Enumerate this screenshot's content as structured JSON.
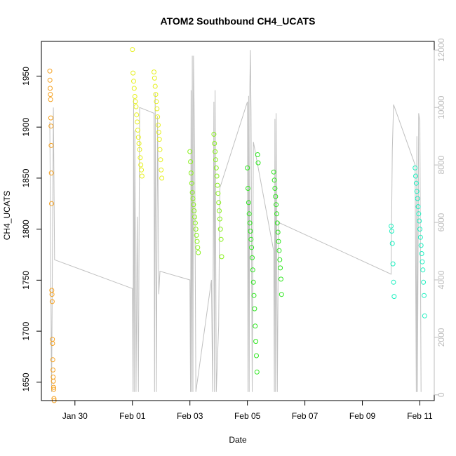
{
  "chart_data": {
    "type": "scatter",
    "title": "ATOM2 Southbound CH4_UCATS",
    "xlabel": "Date",
    "ylabel": "CH4_UCATS",
    "xlim": [
      "2017-01-28T20:00",
      "2017-02-11T12:00"
    ],
    "ylim": [
      1632,
      1984
    ],
    "y2lim": [
      -200,
      12300
    ],
    "x_ticks": [
      {
        "x": "2017-01-30",
        "label": "Jan 30"
      },
      {
        "x": "2017-02-01",
        "label": "Feb 01"
      },
      {
        "x": "2017-02-03",
        "label": "Feb 03"
      },
      {
        "x": "2017-02-05",
        "label": "Feb 05"
      },
      {
        "x": "2017-02-07",
        "label": "Feb 07"
      },
      {
        "x": "2017-02-09",
        "label": "Feb 09"
      },
      {
        "x": "2017-02-11",
        "label": "Feb 11"
      }
    ],
    "y_ticks": [
      1650,
      1700,
      1750,
      1800,
      1850,
      1900,
      1950
    ],
    "y2_ticks": [
      0,
      2000,
      4000,
      6000,
      8000,
      10000,
      12000
    ],
    "grid": false,
    "legend": "none",
    "altitude_color": "#c0c0c0",
    "series": [
      {
        "color": "#f5a01e",
        "points": [
          [
            "2017-01-29T03:00",
            1955
          ],
          [
            "2017-01-29T03:10",
            1946
          ],
          [
            "2017-01-29T03:20",
            1938
          ],
          [
            "2017-01-29T03:30",
            1932
          ],
          [
            "2017-01-29T03:40",
            1927
          ],
          [
            "2017-01-29T03:50",
            1909
          ],
          [
            "2017-01-29T04:00",
            1901
          ],
          [
            "2017-01-29T04:10",
            1882
          ],
          [
            "2017-01-29T04:20",
            1855
          ],
          [
            "2017-01-29T04:30",
            1825
          ],
          [
            "2017-01-29T04:40",
            1740
          ],
          [
            "2017-01-29T04:50",
            1736
          ],
          [
            "2017-01-29T05:00",
            1729
          ],
          [
            "2017-01-29T05:10",
            1692
          ],
          [
            "2017-01-29T05:20",
            1688
          ],
          [
            "2017-01-29T05:30",
            1672
          ],
          [
            "2017-01-29T05:40",
            1662
          ],
          [
            "2017-01-29T05:50",
            1655
          ],
          [
            "2017-01-29T06:00",
            1651
          ],
          [
            "2017-01-29T06:10",
            1645
          ],
          [
            "2017-01-29T06:20",
            1643
          ],
          [
            "2017-01-29T06:30",
            1634
          ],
          [
            "2017-01-29T06:40",
            1632
          ]
        ]
      },
      {
        "color": "#e6f01e",
        "points": [
          [
            "2017-02-01T00:00",
            1976
          ],
          [
            "2017-02-01T00:30",
            1953
          ],
          [
            "2017-02-01T01:00",
            1945
          ],
          [
            "2017-02-01T01:30",
            1938
          ],
          [
            "2017-02-01T02:00",
            1930
          ],
          [
            "2017-02-01T02:30",
            1925
          ],
          [
            "2017-02-01T03:00",
            1920
          ],
          [
            "2017-02-01T03:30",
            1912
          ],
          [
            "2017-02-01T04:00",
            1905
          ],
          [
            "2017-02-01T04:30",
            1897
          ],
          [
            "2017-02-01T05:00",
            1890
          ],
          [
            "2017-02-01T05:30",
            1884
          ],
          [
            "2017-02-01T06:00",
            1878
          ],
          [
            "2017-02-01T06:30",
            1870
          ],
          [
            "2017-02-01T07:00",
            1863
          ],
          [
            "2017-02-01T07:30",
            1858
          ],
          [
            "2017-02-01T08:00",
            1852
          ],
          [
            "2017-02-01T18:00",
            1954
          ],
          [
            "2017-02-01T18:30",
            1948
          ],
          [
            "2017-02-01T19:00",
            1940
          ],
          [
            "2017-02-01T19:30",
            1932
          ],
          [
            "2017-02-01T20:00",
            1925
          ],
          [
            "2017-02-01T20:30",
            1918
          ],
          [
            "2017-02-01T21:00",
            1910
          ],
          [
            "2017-02-01T21:30",
            1902
          ],
          [
            "2017-02-01T22:00",
            1895
          ],
          [
            "2017-02-01T22:30",
            1888
          ],
          [
            "2017-02-01T23:00",
            1878
          ],
          [
            "2017-02-01T23:30",
            1868
          ],
          [
            "2017-02-02T00:00",
            1858
          ],
          [
            "2017-02-02T00:30",
            1850
          ]
        ]
      },
      {
        "color": "#8af01e",
        "points": [
          [
            "2017-02-03T00:00",
            1876
          ],
          [
            "2017-02-03T00:30",
            1866
          ],
          [
            "2017-02-03T01:00",
            1855
          ],
          [
            "2017-02-03T01:30",
            1845
          ],
          [
            "2017-02-03T02:00",
            1836
          ],
          [
            "2017-02-03T02:30",
            1830
          ],
          [
            "2017-02-03T03:00",
            1824
          ],
          [
            "2017-02-03T03:30",
            1818
          ],
          [
            "2017-02-03T04:00",
            1812
          ],
          [
            "2017-02-03T04:30",
            1806
          ],
          [
            "2017-02-03T05:00",
            1800
          ],
          [
            "2017-02-03T05:30",
            1794
          ],
          [
            "2017-02-03T06:00",
            1788
          ],
          [
            "2017-02-03T06:30",
            1782
          ],
          [
            "2017-02-03T07:00",
            1777
          ],
          [
            "2017-02-03T20:00",
            1893
          ],
          [
            "2017-02-03T20:30",
            1884
          ],
          [
            "2017-02-03T21:00",
            1876
          ],
          [
            "2017-02-03T21:30",
            1868
          ],
          [
            "2017-02-03T22:00",
            1860
          ],
          [
            "2017-02-03T22:30",
            1852
          ],
          [
            "2017-02-03T23:00",
            1843
          ],
          [
            "2017-02-03T23:30",
            1835
          ],
          [
            "2017-02-04T00:00",
            1826
          ],
          [
            "2017-02-04T00:30",
            1818
          ],
          [
            "2017-02-04T01:00",
            1810
          ],
          [
            "2017-02-04T01:30",
            1800
          ],
          [
            "2017-02-04T02:00",
            1790
          ],
          [
            "2017-02-04T02:30",
            1773
          ]
        ]
      },
      {
        "color": "#2ee61e",
        "points": [
          [
            "2017-02-05T00:00",
            1860
          ],
          [
            "2017-02-05T00:30",
            1840
          ],
          [
            "2017-02-05T01:00",
            1826
          ],
          [
            "2017-02-05T01:30",
            1815
          ],
          [
            "2017-02-05T02:00",
            1806
          ],
          [
            "2017-02-05T02:30",
            1798
          ],
          [
            "2017-02-05T03:00",
            1790
          ],
          [
            "2017-02-05T03:30",
            1782
          ],
          [
            "2017-02-05T04:00",
            1772
          ],
          [
            "2017-02-05T04:30",
            1760
          ],
          [
            "2017-02-05T05:00",
            1748
          ],
          [
            "2017-02-05T05:30",
            1735
          ],
          [
            "2017-02-05T06:00",
            1722
          ],
          [
            "2017-02-05T06:30",
            1705
          ],
          [
            "2017-02-05T07:00",
            1690
          ],
          [
            "2017-02-05T07:30",
            1676
          ],
          [
            "2017-02-05T08:00",
            1660
          ],
          [
            "2017-02-05T08:30",
            1873
          ],
          [
            "2017-02-05T09:00",
            1865
          ],
          [
            "2017-02-05T22:00",
            1856
          ],
          [
            "2017-02-05T22:30",
            1848
          ],
          [
            "2017-02-05T23:00",
            1840
          ],
          [
            "2017-02-05T23:30",
            1832
          ],
          [
            "2017-02-06T00:00",
            1824
          ],
          [
            "2017-02-06T00:30",
            1815
          ],
          [
            "2017-02-06T01:00",
            1806
          ],
          [
            "2017-02-06T01:30",
            1797
          ],
          [
            "2017-02-06T02:00",
            1788
          ],
          [
            "2017-02-06T02:30",
            1779
          ],
          [
            "2017-02-06T03:00",
            1770
          ],
          [
            "2017-02-06T03:30",
            1762
          ],
          [
            "2017-02-06T04:00",
            1751
          ],
          [
            "2017-02-06T04:30",
            1736
          ]
        ]
      },
      {
        "color": "#1ef0c0",
        "points": [
          [
            "2017-02-10T00:00",
            1803
          ],
          [
            "2017-02-10T00:30",
            1798
          ],
          [
            "2017-02-10T01:00",
            1786
          ],
          [
            "2017-02-10T01:30",
            1766
          ],
          [
            "2017-02-10T02:00",
            1748
          ],
          [
            "2017-02-10T02:30",
            1734
          ],
          [
            "2017-02-10T20:00",
            1860
          ],
          [
            "2017-02-10T20:30",
            1852
          ],
          [
            "2017-02-10T21:00",
            1845
          ],
          [
            "2017-02-10T21:30",
            1837
          ],
          [
            "2017-02-10T22:00",
            1830
          ],
          [
            "2017-02-10T22:30",
            1822
          ],
          [
            "2017-02-10T23:00",
            1815
          ],
          [
            "2017-02-10T23:30",
            1808
          ],
          [
            "2017-02-11T00:00",
            1800
          ],
          [
            "2017-02-11T00:30",
            1792
          ],
          [
            "2017-02-11T01:00",
            1784
          ],
          [
            "2017-02-11T01:30",
            1776
          ],
          [
            "2017-02-11T02:00",
            1768
          ],
          [
            "2017-02-11T02:30",
            1760
          ],
          [
            "2017-02-11T03:00",
            1748
          ],
          [
            "2017-02-11T03:30",
            1735
          ],
          [
            "2017-02-11T04:00",
            1715
          ]
        ]
      }
    ],
    "altitude_line": [
      [
        "2017-01-29T03:00",
        9500
      ],
      [
        "2017-01-29T04:30",
        100
      ],
      [
        "2017-01-29T06:00",
        10000
      ],
      [
        "2017-01-29T07:00",
        4700
      ],
      [
        "2017-02-01T00:00",
        3700
      ],
      [
        "2017-02-01T00:30",
        100
      ],
      [
        "2017-02-01T01:00",
        10300
      ],
      [
        "2017-02-01T01:30",
        100
      ],
      [
        "2017-02-01T02:00",
        9200
      ],
      [
        "2017-02-01T03:00",
        100
      ],
      [
        "2017-02-01T04:00",
        6200
      ],
      [
        "2017-02-01T05:00",
        100
      ],
      [
        "2017-02-01T06:00",
        10000
      ],
      [
        "2017-02-01T18:00",
        9800
      ],
      [
        "2017-02-01T18:30",
        100
      ],
      [
        "2017-02-01T19:00",
        10500
      ],
      [
        "2017-02-01T20:00",
        100
      ],
      [
        "2017-02-01T21:00",
        9700
      ],
      [
        "2017-02-01T22:00",
        3500
      ],
      [
        "2017-02-01T23:00",
        4300
      ],
      [
        "2017-02-03T00:00",
        4000
      ],
      [
        "2017-02-03T00:30",
        100
      ],
      [
        "2017-02-03T01:00",
        10600
      ],
      [
        "2017-02-03T01:30",
        100
      ],
      [
        "2017-02-03T02:00",
        11800
      ],
      [
        "2017-02-03T02:30",
        100
      ],
      [
        "2017-02-03T03:00",
        11800
      ],
      [
        "2017-02-03T04:00",
        8500
      ],
      [
        "2017-02-03T05:00",
        100
      ],
      [
        "2017-02-03T18:00",
        4000
      ],
      [
        "2017-02-03T19:00",
        100
      ],
      [
        "2017-02-03T20:00",
        10200
      ],
      [
        "2017-02-03T20:30",
        100
      ],
      [
        "2017-02-03T21:00",
        10600
      ],
      [
        "2017-02-03T22:00",
        100
      ],
      [
        "2017-02-04T00:00",
        2400
      ],
      [
        "2017-02-04T01:00",
        7200
      ],
      [
        "2017-02-05T00:00",
        10200
      ],
      [
        "2017-02-05T00:30",
        100
      ],
      [
        "2017-02-05T01:00",
        10400
      ],
      [
        "2017-02-05T01:30",
        100
      ],
      [
        "2017-02-05T02:00",
        10700
      ],
      [
        "2017-02-05T02:30",
        12000
      ],
      [
        "2017-02-05T03:00",
        9900
      ],
      [
        "2017-02-05T04:00",
        100
      ],
      [
        "2017-02-05T05:00",
        8800
      ],
      [
        "2017-02-05T22:00",
        5000
      ],
      [
        "2017-02-05T22:30",
        100
      ],
      [
        "2017-02-05T23:00",
        9600
      ],
      [
        "2017-02-05T23:30",
        100
      ],
      [
        "2017-02-06T00:00",
        9800
      ],
      [
        "2017-02-06T01:00",
        100
      ],
      [
        "2017-02-06T02:00",
        6000
      ],
      [
        "2017-02-10T00:00",
        4200
      ],
      [
        "2017-02-10T01:00",
        8500
      ],
      [
        "2017-02-10T02:00",
        10100
      ],
      [
        "2017-02-10T20:00",
        8000
      ],
      [
        "2017-02-10T21:00",
        100
      ],
      [
        "2017-02-10T21:30",
        9000
      ],
      [
        "2017-02-10T22:00",
        100
      ],
      [
        "2017-02-10T23:00",
        9800
      ],
      [
        "2017-02-11T00:00",
        9500
      ],
      [
        "2017-02-11T01:00",
        100
      ]
    ]
  }
}
